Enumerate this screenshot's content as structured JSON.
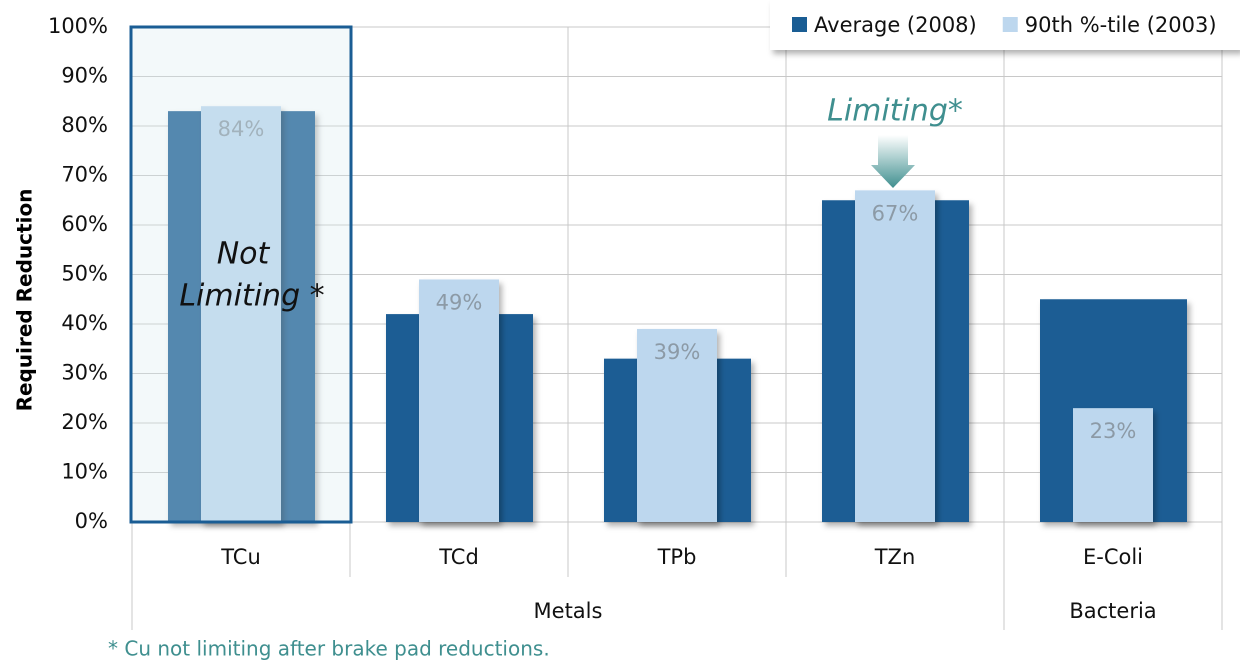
{
  "chart_data": {
    "type": "bar",
    "ylabel": "Required Reduction",
    "categories": [
      "TCu",
      "TCd",
      "TPb",
      "TZn",
      "E-Coli"
    ],
    "groups": [
      "Metals",
      "Bacteria"
    ],
    "series": [
      {
        "name": "Average (2008)",
        "color": "#1a5d94",
        "values": [
          83,
          42,
          33,
          65,
          45
        ],
        "value_labels": [
          "83%",
          "42%",
          "33%",
          "65%",
          "45%"
        ]
      },
      {
        "name": "90th %-tile (2003)",
        "color": "#bdd7ee",
        "values": [
          84,
          49,
          39,
          67,
          23
        ],
        "value_labels": [
          "84%",
          "49%",
          "39%",
          "67%",
          "23%"
        ]
      }
    ],
    "ylim": [
      0,
      100
    ],
    "yticks": [
      {
        "value": 0,
        "label": "0%"
      },
      {
        "value": 10,
        "label": "10%"
      },
      {
        "value": 20,
        "label": "20%"
      },
      {
        "value": 30,
        "label": "30%"
      },
      {
        "value": 40,
        "label": "40%"
      },
      {
        "value": 50,
        "label": "50%"
      },
      {
        "value": 60,
        "label": "60%"
      },
      {
        "value": 70,
        "label": "70%"
      },
      {
        "value": 80,
        "label": "80%"
      },
      {
        "value": 90,
        "label": "90%"
      },
      {
        "value": 100,
        "label": "100%"
      }
    ],
    "grid": true,
    "legend": "top-right",
    "annotations": [
      "Not",
      "Limiting *",
      "Limiting*"
    ],
    "footnote": "*  Cu not limiting after brake pad reductions."
  }
}
